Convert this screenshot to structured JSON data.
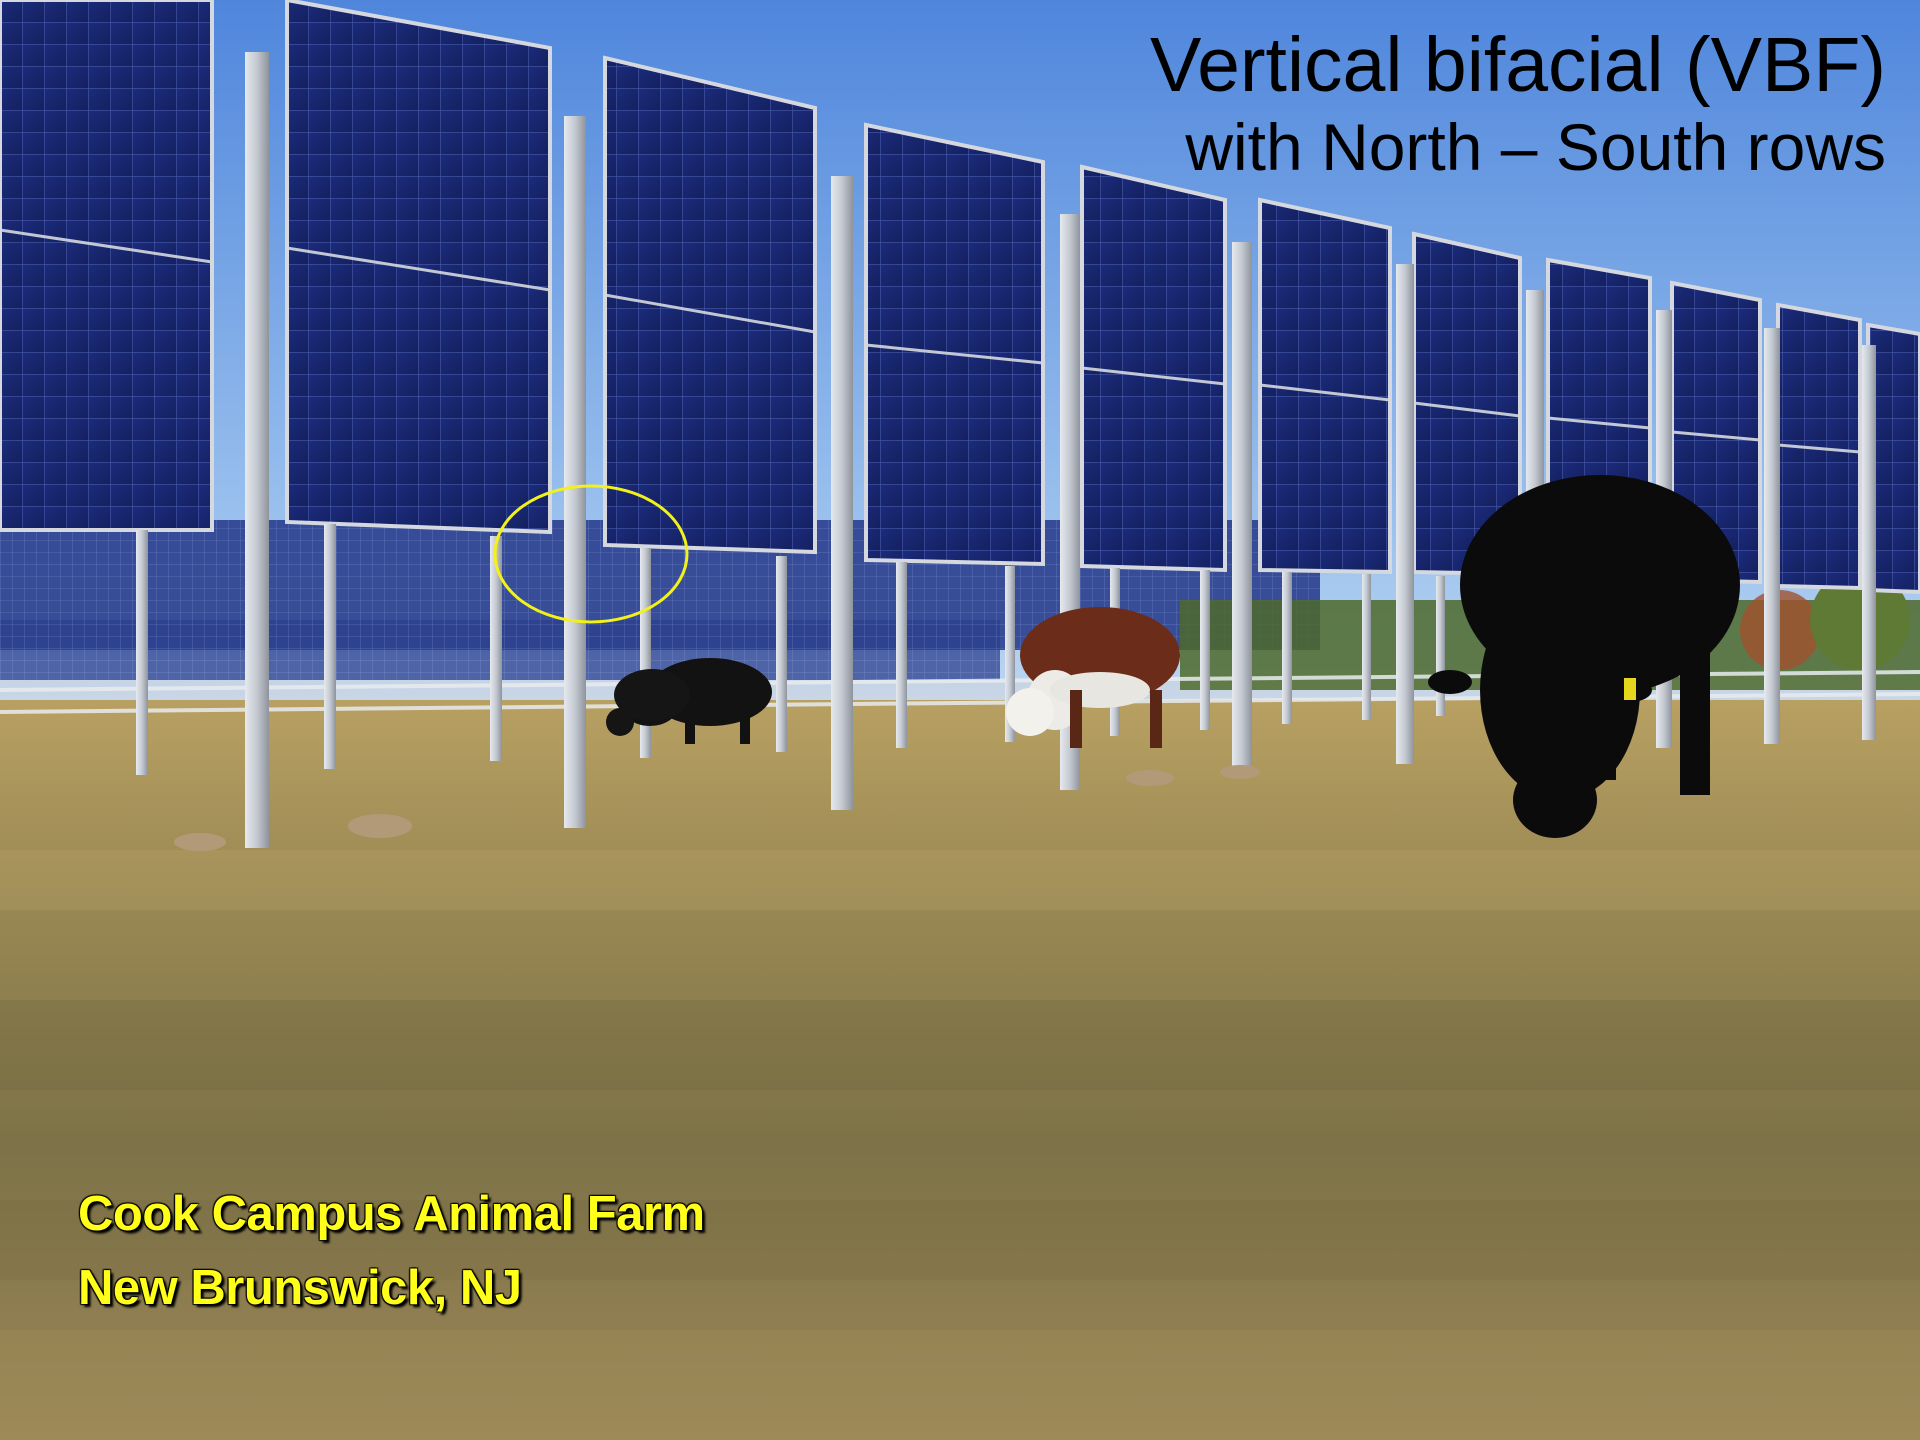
{
  "title": {
    "line1": "Vertical bifacial (VBF)",
    "line2": "with North – South rows"
  },
  "caption": {
    "line1": "Cook Campus Animal Farm",
    "line2": "New Brunswick, NJ"
  },
  "colors": {
    "sky": "#6fa3e6",
    "panel": "#1a2a78",
    "post": "#c9ced6",
    "grass": "#a08a52",
    "caption_text": "#ffff1a",
    "highlight_ellipse": "#f2f21a"
  }
}
